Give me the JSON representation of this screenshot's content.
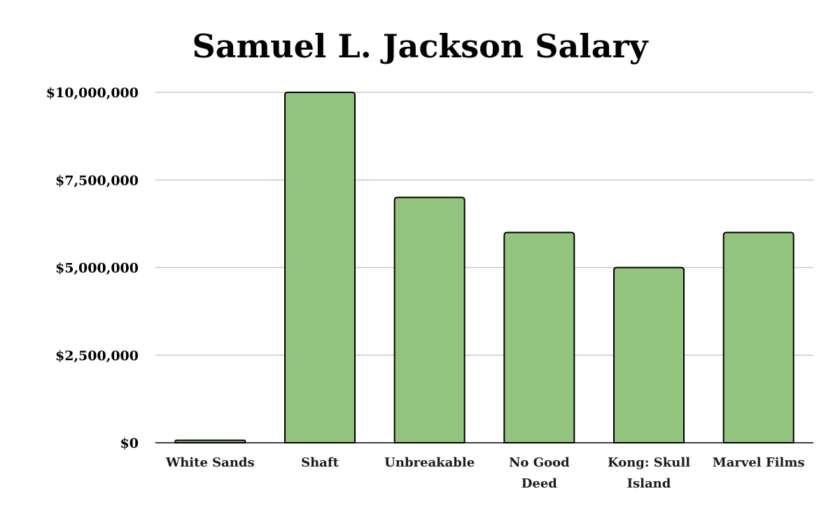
{
  "chart_data": {
    "type": "bar",
    "title": "Samuel L. Jackson Salary",
    "xlabel": "",
    "ylabel": "",
    "categories": [
      [
        "White Sands"
      ],
      [
        "Shaft"
      ],
      [
        "Unbreakable"
      ],
      [
        "No Good",
        "Deed"
      ],
      [
        "Kong: Skull",
        "Island"
      ],
      [
        "Marvel Films"
      ]
    ],
    "values": [
      70000,
      10000000,
      7000000,
      6000000,
      5000000,
      6000000
    ],
    "ylim": [
      0,
      10000000
    ],
    "yticks": [
      0,
      2500000,
      5000000,
      7500000,
      10000000
    ],
    "ytick_labels": [
      "$0",
      "$2,500,000",
      "$5,000,000",
      "$7,500,000",
      "$10,000,000"
    ],
    "grid": true,
    "legend": "none",
    "bar_color": "#93c47d",
    "bar_edge_color": "#000000",
    "grid_color": "#c8c8c8"
  }
}
